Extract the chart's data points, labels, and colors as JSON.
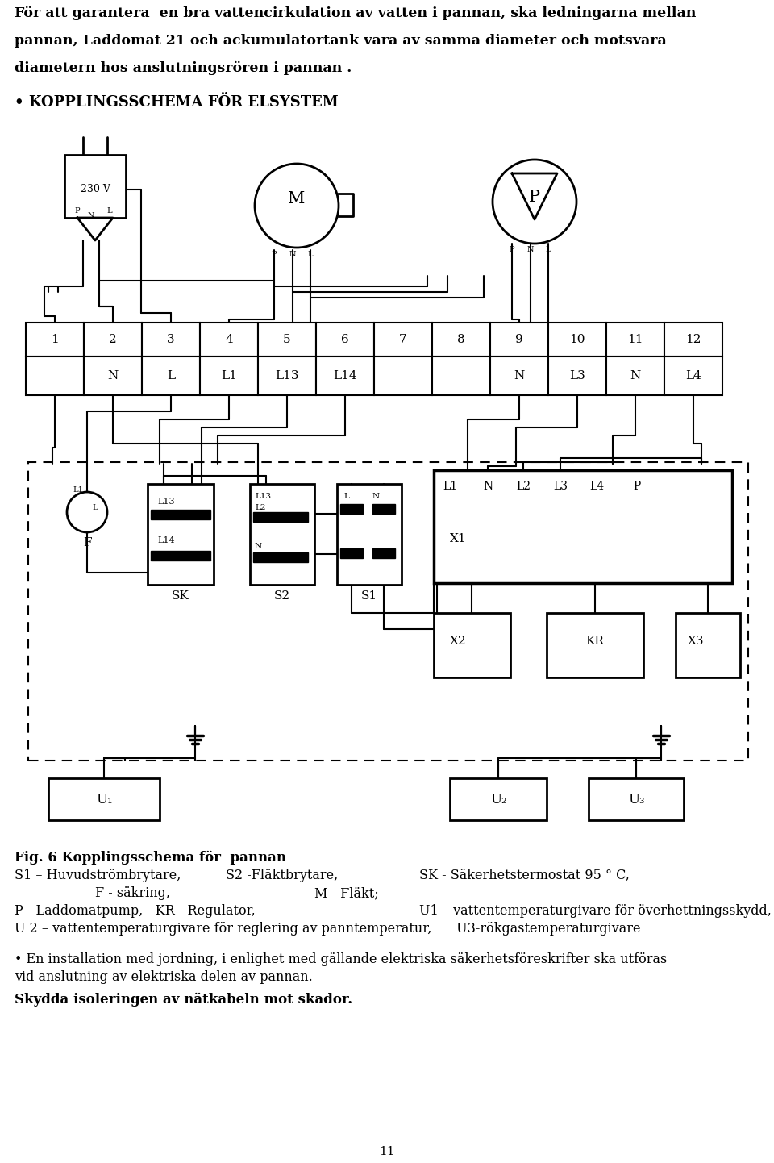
{
  "bg_color": "#ffffff",
  "line_color": "#000000",
  "intro_line1": "För att garantera  en bra vattencirkulation av vatten i pannan, ska ledningarna mellan",
  "intro_line2": "pannan, Laddomat 21 och ackumulatortank vara av samma diameter och motsvara",
  "intro_line3": "diametern hos anslutningsrören i pannan .",
  "heading": "• KOPPLINGSSCHEMA FÖR ELSYSTEM",
  "fig_caption_bold": "Fig. 6 Kopplingsschema för  pannan",
  "cap_line1a": "S1 – Huvudströmbrytare,",
  "cap_line1b": "S2 -Fläktbrytare,",
  "cap_line1c": "SK - Säkerhetstermostat 95 ° C,",
  "cap_line2a": "             F - säkring,",
  "cap_line2b": "            M - Fläkt;",
  "cap_line3a": "P - Laddomatpump,   KR - Regulator,",
  "cap_line3b": "       U1 – vattentemperaturgivare för överhettningsskydd,",
  "cap_line4": "U 2 – vattentemperaturgivare för reglering av panntemperatur,      U3-rökgastemperaturgivare",
  "bullet_line1": "• En installation med jordning, i enlighet med gällande elektriska säkerhetsföreskrifter ska utföras",
  "bullet_line2": "vid anslutning av elektriska delen av pannan.",
  "bold_text": "Skydda isoleringen av nätkabeln mot skador.",
  "page_num": "11",
  "term_labels_top": [
    "1",
    "2",
    "3",
    "4",
    "5",
    "6",
    "7",
    "8",
    "9",
    "10",
    "11",
    "12"
  ],
  "term_labels_bot": [
    "≡",
    "N",
    "L",
    "L1",
    "L13",
    "L14",
    "",
    "",
    "N",
    "L3",
    "N",
    "L4"
  ],
  "x1_labels": [
    "L1",
    "N",
    "L2",
    "L3",
    "L4",
    "P"
  ]
}
